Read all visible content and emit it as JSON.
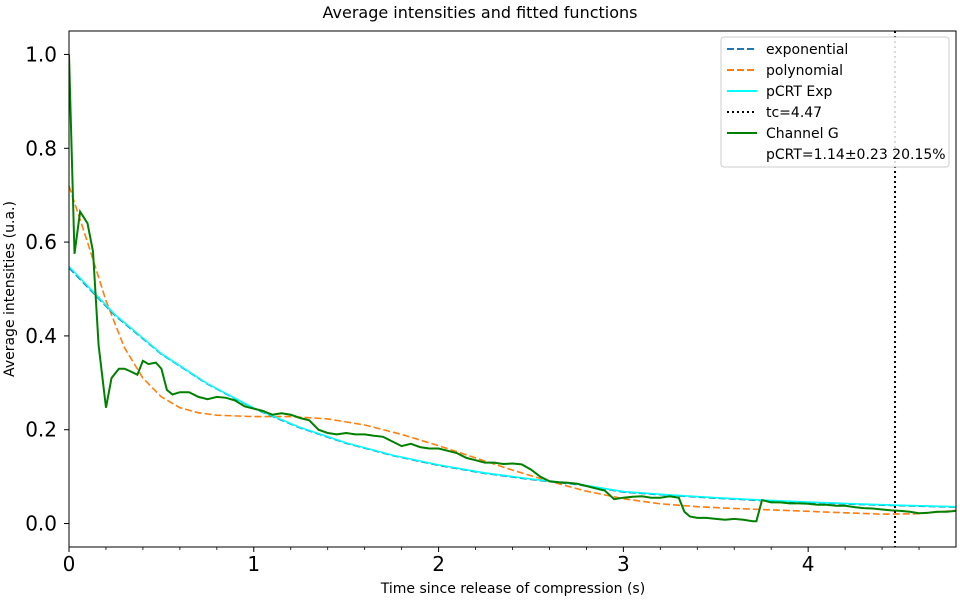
{
  "chart_data": {
    "type": "line",
    "title": "Average intensities and fitted functions",
    "xlabel": "Time since release of compression (s)",
    "ylabel": "Average intensities (u.a.)",
    "xlim": [
      0,
      4.8
    ],
    "ylim": [
      -0.05,
      1.05
    ],
    "x_ticks": [
      0,
      1,
      2,
      3,
      4
    ],
    "x_tick_labels": [
      "0",
      "1",
      "2",
      "3",
      "4"
    ],
    "y_ticks": [
      0.0,
      0.2,
      0.4,
      0.6,
      0.8,
      1.0
    ],
    "y_tick_labels": [
      "0.0",
      "0.2",
      "0.4",
      "0.6",
      "0.8",
      "1.0"
    ],
    "grid": false,
    "legend_position": "top-right",
    "legend": [
      {
        "label": "exponential",
        "color": "#1f77b4",
        "style": "dashed"
      },
      {
        "label": "polynomial",
        "color": "#ff7f0e",
        "style": "dashed"
      },
      {
        "label": "pCRT Exp",
        "color": "#00ffff",
        "style": "solid"
      },
      {
        "label": "tc=4.47",
        "color": "#000000",
        "style": "dotted"
      },
      {
        "label": "Channel G",
        "color": "#008000",
        "style": "solid"
      },
      {
        "label": "pCRT=1.14±0.23 20.15%",
        "color": "none",
        "style": "none"
      }
    ],
    "vline": {
      "x": 4.47,
      "color": "#000000",
      "style": "dotted"
    },
    "series": [
      {
        "name": "exponential",
        "color": "#1f77b4",
        "style": "dashed",
        "x": [
          0,
          0.25,
          0.5,
          0.75,
          1.0,
          1.25,
          1.5,
          1.75,
          2.0,
          2.25,
          2.5,
          2.75,
          3.0,
          3.25,
          3.5,
          3.75,
          4.0,
          4.25,
          4.5,
          4.8
        ],
        "y": [
          0.545,
          0.443,
          0.361,
          0.297,
          0.245,
          0.204,
          0.171,
          0.145,
          0.124,
          0.107,
          0.094,
          0.083,
          0.067,
          0.06,
          0.054,
          0.049,
          0.045,
          0.041,
          0.038,
          0.035
        ]
      },
      {
        "name": "polynomial",
        "color": "#ff7f0e",
        "style": "dashed",
        "x": [
          0,
          0.1,
          0.2,
          0.3,
          0.4,
          0.5,
          0.6,
          0.7,
          0.8,
          1.0,
          1.2,
          1.4,
          1.6,
          1.8,
          2.0,
          2.2,
          2.4,
          2.6,
          2.8,
          3.0,
          3.2,
          3.4,
          3.6,
          3.8,
          4.0,
          4.2,
          4.4,
          4.6,
          4.8
        ],
        "y": [
          0.72,
          0.6,
          0.475,
          0.375,
          0.31,
          0.27,
          0.247,
          0.236,
          0.231,
          0.228,
          0.228,
          0.223,
          0.21,
          0.19,
          0.166,
          0.14,
          0.114,
          0.09,
          0.069,
          0.053,
          0.042,
          0.036,
          0.032,
          0.029,
          0.026,
          0.023,
          0.02,
          0.021,
          0.028
        ]
      },
      {
        "name": "pCRT Exp",
        "color": "#00ffff",
        "style": "solid",
        "x": [
          0,
          0.25,
          0.5,
          0.75,
          1.0,
          1.25,
          1.5,
          1.75,
          2.0,
          2.25,
          2.5,
          2.75,
          3.0,
          3.25,
          3.5,
          3.75,
          4.0,
          4.25,
          4.5,
          4.8
        ],
        "y": [
          0.548,
          0.445,
          0.362,
          0.298,
          0.246,
          0.205,
          0.172,
          0.146,
          0.125,
          0.108,
          0.095,
          0.084,
          0.068,
          0.061,
          0.055,
          0.05,
          0.046,
          0.042,
          0.039,
          0.036
        ]
      },
      {
        "name": "Channel G",
        "color": "#008000",
        "style": "solid",
        "x": [
          0,
          0.03,
          0.06,
          0.1,
          0.13,
          0.16,
          0.2,
          0.23,
          0.27,
          0.3,
          0.33,
          0.37,
          0.4,
          0.43,
          0.47,
          0.5,
          0.53,
          0.56,
          0.6,
          0.65,
          0.7,
          0.75,
          0.8,
          0.85,
          0.9,
          0.95,
          1.0,
          1.05,
          1.1,
          1.15,
          1.2,
          1.25,
          1.3,
          1.35,
          1.4,
          1.45,
          1.5,
          1.55,
          1.6,
          1.65,
          1.7,
          1.75,
          1.8,
          1.85,
          1.9,
          1.95,
          2.0,
          2.05,
          2.1,
          2.15,
          2.2,
          2.25,
          2.3,
          2.35,
          2.4,
          2.45,
          2.5,
          2.55,
          2.6,
          2.65,
          2.7,
          2.75,
          2.8,
          2.85,
          2.9,
          2.95,
          3.0,
          3.05,
          3.1,
          3.15,
          3.2,
          3.25,
          3.3,
          3.33,
          3.36,
          3.4,
          3.45,
          3.5,
          3.55,
          3.6,
          3.65,
          3.7,
          3.72,
          3.75,
          3.8,
          3.85,
          3.9,
          3.95,
          4.0,
          4.05,
          4.1,
          4.15,
          4.2,
          4.25,
          4.3,
          4.35,
          4.4,
          4.45,
          4.5,
          4.55,
          4.6,
          4.65,
          4.7,
          4.75,
          4.8
        ],
        "y": [
          1.0,
          0.575,
          0.665,
          0.64,
          0.58,
          0.38,
          0.247,
          0.31,
          0.33,
          0.33,
          0.325,
          0.317,
          0.347,
          0.34,
          0.343,
          0.33,
          0.285,
          0.275,
          0.28,
          0.28,
          0.27,
          0.265,
          0.27,
          0.268,
          0.262,
          0.25,
          0.245,
          0.24,
          0.232,
          0.235,
          0.232,
          0.225,
          0.22,
          0.2,
          0.193,
          0.19,
          0.193,
          0.19,
          0.19,
          0.187,
          0.185,
          0.175,
          0.165,
          0.17,
          0.163,
          0.16,
          0.16,
          0.155,
          0.15,
          0.14,
          0.135,
          0.13,
          0.13,
          0.127,
          0.128,
          0.126,
          0.115,
          0.1,
          0.09,
          0.088,
          0.087,
          0.085,
          0.08,
          0.075,
          0.07,
          0.052,
          0.055,
          0.057,
          0.058,
          0.055,
          0.055,
          0.058,
          0.055,
          0.025,
          0.015,
          0.012,
          0.012,
          0.01,
          0.008,
          0.01,
          0.008,
          0.005,
          0.005,
          0.05,
          0.045,
          0.045,
          0.043,
          0.043,
          0.042,
          0.04,
          0.04,
          0.038,
          0.038,
          0.035,
          0.033,
          0.032,
          0.03,
          0.028,
          0.027,
          0.025,
          0.022,
          0.023,
          0.025,
          0.025,
          0.027
        ]
      }
    ]
  }
}
